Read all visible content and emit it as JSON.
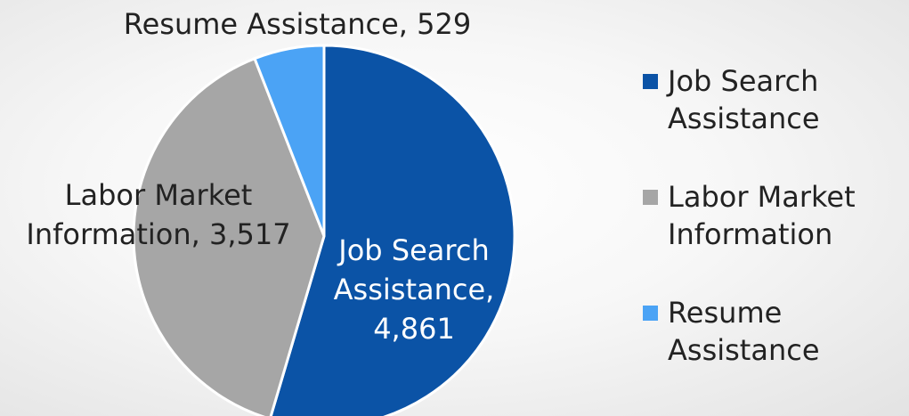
{
  "chart_data": {
    "type": "pie",
    "title": "",
    "slices": [
      {
        "name": "Job Search Assistance",
        "value": 4861,
        "color": "#0B53A6",
        "label_lines": [
          "Job Search",
          "Assistance,",
          "4,861"
        ],
        "label_color": "#ffffff"
      },
      {
        "name": "Labor Market Information",
        "value": 3517,
        "color": "#A6A6A6",
        "label_lines": [
          "Labor Market",
          "Information, 3,517"
        ],
        "label_color": "#222222"
      },
      {
        "name": "Resume Assistance",
        "value": 529,
        "color": "#4BA3F5",
        "label_lines": [
          "Resume Assistance, 529"
        ],
        "label_color": "#222222"
      }
    ],
    "legend_position": "right"
  },
  "legend": {
    "items": [
      {
        "lines": [
          "Job Search",
          "Assistance"
        ],
        "color": "#0B53A6"
      },
      {
        "lines": [
          "Labor Market",
          "Information"
        ],
        "color": "#A6A6A6"
      },
      {
        "lines": [
          "Resume",
          "Assistance"
        ],
        "color": "#4BA3F5"
      }
    ]
  }
}
